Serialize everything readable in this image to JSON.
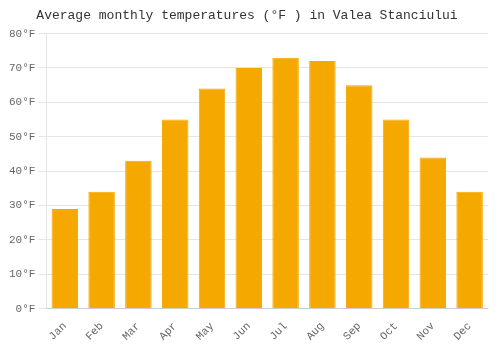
{
  "chart_data": {
    "type": "bar",
    "title": "Average monthly temperatures (°F ) in Valea Stanciului",
    "categories": [
      "Jan",
      "Feb",
      "Mar",
      "Apr",
      "May",
      "Jun",
      "Jul",
      "Aug",
      "Sep",
      "Oct",
      "Nov",
      "Dec"
    ],
    "values": [
      29,
      34,
      43,
      55,
      64,
      70,
      73,
      72,
      65,
      55,
      44,
      34
    ],
    "color": "#F5A800",
    "ylim": [
      0,
      80
    ],
    "yticks": [
      {
        "value": 0,
        "label": "0°F"
      },
      {
        "value": 10,
        "label": "10°F"
      },
      {
        "value": 20,
        "label": "20°F"
      },
      {
        "value": 30,
        "label": "30°F"
      },
      {
        "value": 40,
        "label": "40°F"
      },
      {
        "value": 50,
        "label": "50°F"
      },
      {
        "value": 60,
        "label": "60°F"
      },
      {
        "value": 70,
        "label": "70°F"
      },
      {
        "value": 80,
        "label": "80°F"
      }
    ],
    "grid": true
  }
}
